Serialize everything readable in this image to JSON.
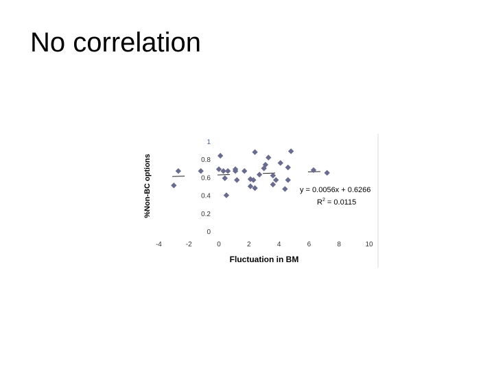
{
  "slide": {
    "title": "No correlation"
  },
  "chart_data": {
    "type": "scatter",
    "xlabel": "Fluctuation in BM",
    "ylabel": "%Non-BC options",
    "xlim": [
      -4,
      10
    ],
    "ylim": [
      0,
      1
    ],
    "x_ticks": [
      "-4",
      "-2",
      "0",
      "2",
      "4",
      "6",
      "8",
      "10"
    ],
    "y_ticks": [
      "0",
      "0.2",
      "0.4",
      "0.6",
      "0.8",
      "1"
    ],
    "trendline": {
      "equation": "y = 0.0056x + 0.6266",
      "r2_prefix": "R",
      "r2_sup": "2",
      "r2_suffix": " = 0.0115",
      "slope": 0.0056,
      "intercept": 0.6266
    },
    "points": [
      {
        "x": -3,
        "y": 0.51
      },
      {
        "x": -2.7,
        "y": 0.67
      },
      {
        "x": -1.2,
        "y": 0.67
      },
      {
        "x": 0.1,
        "y": 0.84
      },
      {
        "x": 0,
        "y": 0.69
      },
      {
        "x": 0.3,
        "y": 0.67
      },
      {
        "x": 0.6,
        "y": 0.67
      },
      {
        "x": 1.1,
        "y": 0.67
      },
      {
        "x": 1.1,
        "y": 0.69
      },
      {
        "x": 0.4,
        "y": 0.59
      },
      {
        "x": 0.5,
        "y": 0.4
      },
      {
        "x": 1.2,
        "y": 0.57
      },
      {
        "x": 1.7,
        "y": 0.67
      },
      {
        "x": 2.1,
        "y": 0.58
      },
      {
        "x": 2.3,
        "y": 0.57
      },
      {
        "x": 2.1,
        "y": 0.5
      },
      {
        "x": 2.4,
        "y": 0.48
      },
      {
        "x": 2.4,
        "y": 0.88
      },
      {
        "x": 2.7,
        "y": 0.63
      },
      {
        "x": 3.0,
        "y": 0.7
      },
      {
        "x": 3.3,
        "y": 0.82
      },
      {
        "x": 3.1,
        "y": 0.74
      },
      {
        "x": 3.6,
        "y": 0.62
      },
      {
        "x": 3.8,
        "y": 0.57
      },
      {
        "x": 3.6,
        "y": 0.52
      },
      {
        "x": 4.1,
        "y": 0.76
      },
      {
        "x": 4.4,
        "y": 0.47
      },
      {
        "x": 4.6,
        "y": 0.57
      },
      {
        "x": 4.6,
        "y": 0.71
      },
      {
        "x": 4.8,
        "y": 0.89
      },
      {
        "x": 6.3,
        "y": 0.68
      },
      {
        "x": 7.2,
        "y": 0.65
      }
    ]
  }
}
